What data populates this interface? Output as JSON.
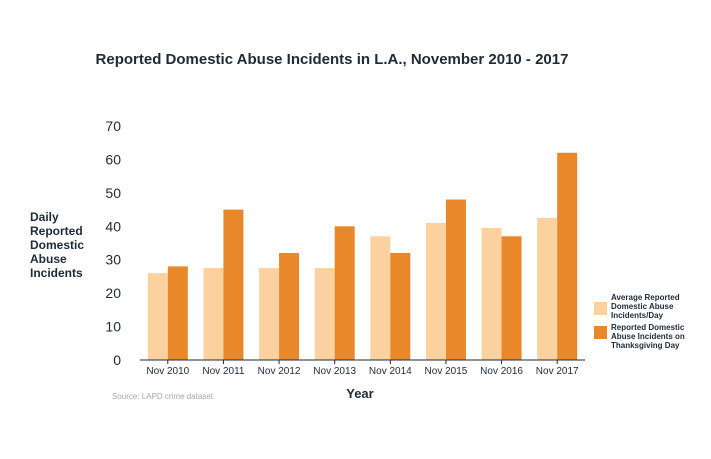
{
  "chart_data": {
    "type": "bar",
    "title": "Reported Domestic Abuse Incidents in L.A., November 2010 - 2017",
    "xlabel": "Year",
    "ylabel_lines": [
      "Daily",
      "Reported",
      "Domestic",
      "Abuse",
      "Incidents"
    ],
    "ylim": [
      0,
      70
    ],
    "yticks": [
      0,
      10,
      20,
      30,
      40,
      50,
      60,
      70
    ],
    "grid": false,
    "legend_position": "right",
    "categories": [
      "Nov 2010",
      "Nov 2011",
      "Nov 2012",
      "Nov 2013",
      "Nov 2014",
      "Nov 2015",
      "Nov 2016",
      "Nov 2017"
    ],
    "series": [
      {
        "name_lines": [
          "Average Reported",
          "Domestic Abuse",
          "Incidents/Day"
        ],
        "color": "#fbd29f",
        "values": [
          26,
          27.5,
          27.5,
          27.5,
          37,
          41,
          39.5,
          42.5
        ]
      },
      {
        "name_lines": [
          "Reported Domestic",
          "Abuse Incidents on",
          "Thanksgiving Day"
        ],
        "color": "#e8882a",
        "values": [
          28,
          45,
          32,
          40,
          32,
          48,
          37,
          62
        ]
      }
    ],
    "source": "Source: LAPD crime dataset"
  }
}
